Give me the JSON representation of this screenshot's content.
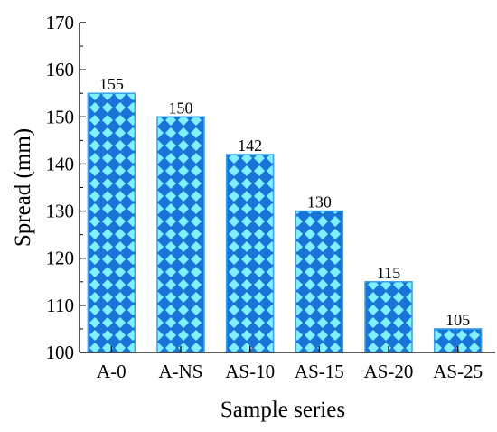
{
  "chart_data": {
    "type": "bar",
    "title": "",
    "xlabel": "Sample series",
    "ylabel": "Spread (mm)",
    "categories": [
      "A-0",
      "A-NS",
      "AS-10",
      "AS-15",
      "AS-20",
      "AS-25"
    ],
    "values": [
      155,
      150,
      142,
      130,
      115,
      105
    ],
    "data_labels": [
      "155",
      "150",
      "142",
      "130",
      "115",
      "105"
    ],
    "ylim": [
      100,
      170
    ],
    "yticks": [
      100,
      110,
      120,
      130,
      140,
      150,
      160,
      170
    ],
    "grid": false,
    "legend": "none",
    "colors": {
      "bar_fill": "#1a73d6",
      "bar_pattern": "#7ff0ff",
      "bar_edge": "#3aa0ea",
      "axis": "#000000"
    }
  }
}
